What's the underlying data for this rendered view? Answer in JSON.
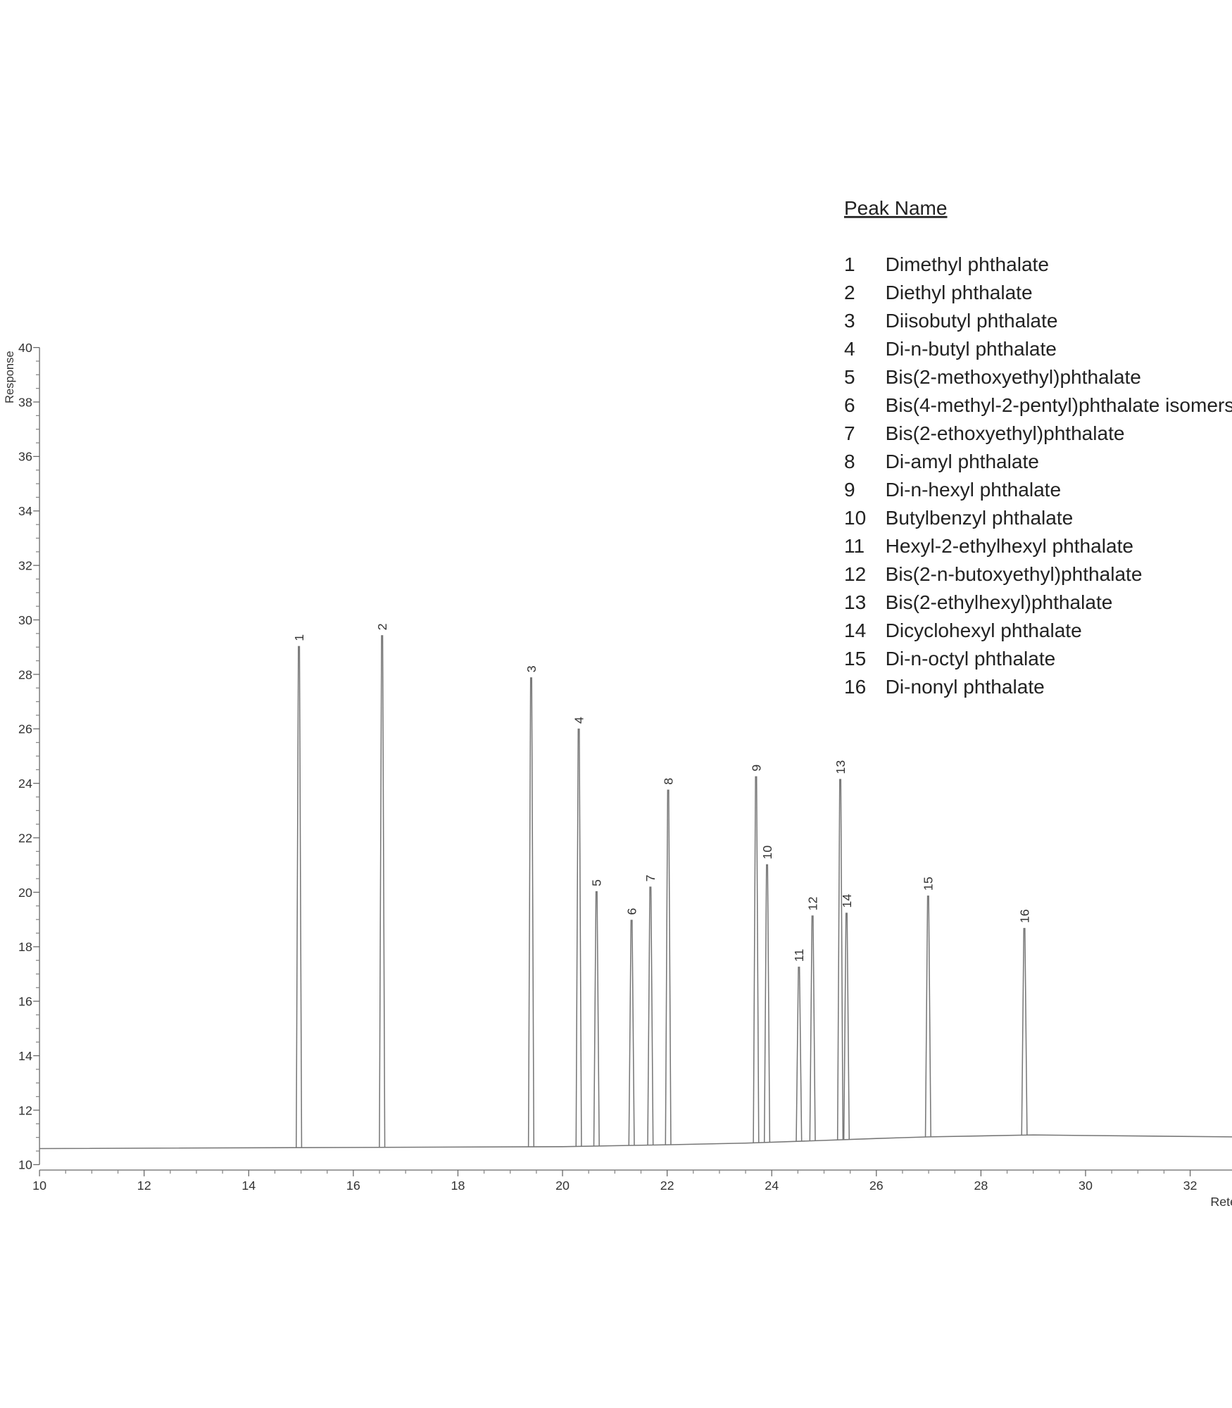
{
  "chart_data": {
    "type": "chromatogram",
    "y_label": "Response",
    "x_label": "Rete",
    "xlim": [
      10,
      32.8
    ],
    "ylim": [
      10,
      40
    ],
    "xticks": [
      10,
      12,
      14,
      16,
      18,
      20,
      22,
      24,
      26,
      28,
      30,
      32
    ],
    "yticks": [
      10,
      12,
      14,
      16,
      18,
      20,
      22,
      24,
      26,
      28,
      30,
      32,
      34,
      36,
      38,
      40
    ],
    "color": "#777777",
    "x": [
      10,
      20,
      22,
      23.5,
      25,
      26,
      27,
      29,
      32.8
    ],
    "values": [
      10.59,
      10.66,
      10.73,
      10.79,
      10.89,
      10.96,
      11.02,
      11.09,
      11.02
    ],
    "peaks": {
      "labels": [
        "1",
        "2",
        "3",
        "4",
        "5",
        "6",
        "7",
        "8",
        "9",
        "10",
        "11",
        "12",
        "13",
        "14",
        "15",
        "16"
      ],
      "x": [
        14.96,
        16.55,
        19.4,
        20.31,
        20.65,
        21.32,
        21.68,
        22.02,
        23.7,
        23.91,
        24.52,
        24.78,
        25.31,
        25.43,
        26.99,
        28.83
      ],
      "values": [
        29.02,
        29.42,
        27.87,
        25.99,
        20.02,
        18.97,
        20.19,
        23.75,
        24.24,
        21.01,
        17.25,
        19.13,
        24.14,
        19.23,
        19.86,
        18.67
      ]
    },
    "legend": {
      "title": "Peak Name",
      "names": [
        "Dimethyl phthalate",
        "Diethyl phthalate",
        "Diisobutyl phthalate",
        "Di-n-butyl phthalate",
        "Bis(2-methoxyethyl)phthalate",
        "Bis(4-methyl-2-pentyl)phthalate isomers",
        "Bis(2-ethoxyethyl)phthalate",
        "Di-amyl phthalate",
        "Di-n-hexyl phthalate",
        "Butylbenzyl phthalate",
        "Hexyl-2-ethylhexyl phthalate",
        "Bis(2-n-butoxyethyl)phthalate",
        "Bis(2-ethylhexyl)phthalate",
        "Dicyclohexyl phthalate",
        "Di-n-octyl phthalate",
        "Di-nonyl phthalate"
      ]
    }
  }
}
